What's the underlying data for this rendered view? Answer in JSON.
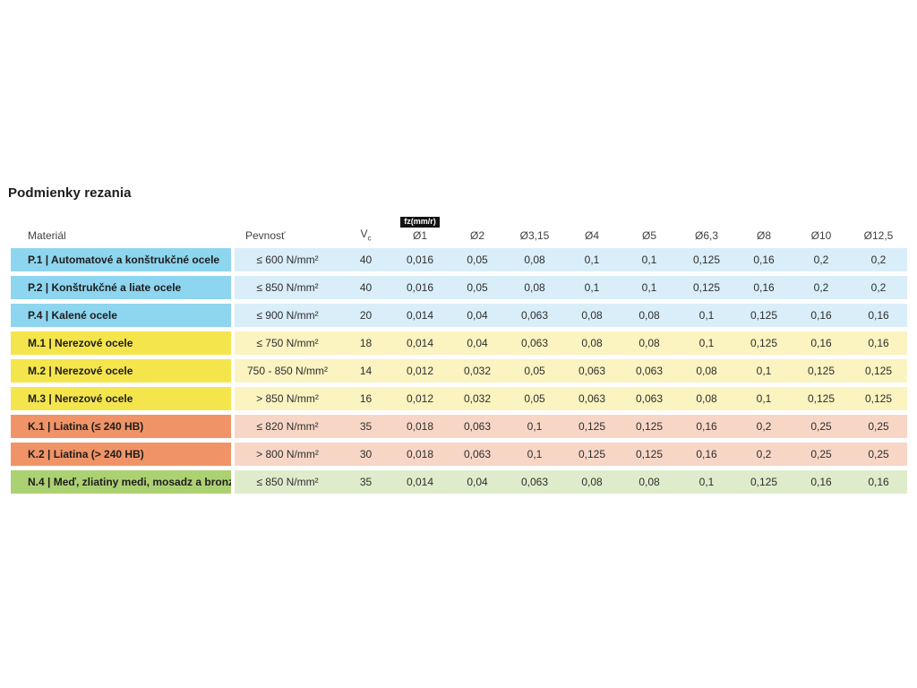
{
  "title": "Podmienky rezania",
  "table": {
    "headers": {
      "material": "Materiál",
      "pevnost": "Pevnosť",
      "vc_main": "V",
      "vc_sub": "c",
      "fz_badge": "fz(mm/r)",
      "diameters": [
        "Ø1",
        "Ø2",
        "Ø3,15",
        "Ø4",
        "Ø5",
        "Ø6,3",
        "Ø8",
        "Ø10",
        "Ø12,5"
      ]
    },
    "group_colors": {
      "P": {
        "dark": "#8ed5ef",
        "light": "#d9eef8"
      },
      "M": {
        "dark": "#f5e54d",
        "light": "#fbf3c0"
      },
      "K": {
        "dark": "#f09467",
        "light": "#f8d6c6"
      },
      "N": {
        "dark": "#acd173",
        "light": "#dfeccb"
      }
    },
    "rows": [
      {
        "group": "P",
        "material": "P.1 | Automatové a konštrukčné ocele",
        "pevnost": "≤ 600 N/mm²",
        "vc": "40",
        "values": [
          "0,016",
          "0,05",
          "0,08",
          "0,1",
          "0,1",
          "0,125",
          "0,16",
          "0,2",
          "0,2"
        ]
      },
      {
        "group": "P",
        "material": "P.2 | Konštrukčné a liate ocele",
        "pevnost": "≤ 850 N/mm²",
        "vc": "40",
        "values": [
          "0,016",
          "0,05",
          "0,08",
          "0,1",
          "0,1",
          "0,125",
          "0,16",
          "0,2",
          "0,2"
        ]
      },
      {
        "group": "P",
        "material": "P.4 | Kalené ocele",
        "pevnost": "≤ 900 N/mm²",
        "vc": "20",
        "values": [
          "0,014",
          "0,04",
          "0,063",
          "0,08",
          "0,08",
          "0,1",
          "0,125",
          "0,16",
          "0,16"
        ]
      },
      {
        "group": "M",
        "material": "M.1 | Nerezové ocele",
        "pevnost": "≤ 750 N/mm²",
        "vc": "18",
        "values": [
          "0,014",
          "0,04",
          "0,063",
          "0,08",
          "0,08",
          "0,1",
          "0,125",
          "0,16",
          "0,16"
        ]
      },
      {
        "group": "M",
        "material": "M.2 | Nerezové ocele",
        "pevnost": "750 - 850 N/mm²",
        "vc": "14",
        "values": [
          "0,012",
          "0,032",
          "0,05",
          "0,063",
          "0,063",
          "0,08",
          "0,1",
          "0,125",
          "0,125"
        ]
      },
      {
        "group": "M",
        "material": "M.3 | Nerezové ocele",
        "pevnost": "> 850 N/mm²",
        "vc": "16",
        "values": [
          "0,012",
          "0,032",
          "0,05",
          "0,063",
          "0,063",
          "0,08",
          "0,1",
          "0,125",
          "0,125"
        ]
      },
      {
        "group": "K",
        "material": "K.1 | Liatina (≤ 240 HB)",
        "pevnost": "≤ 820 N/mm²",
        "vc": "35",
        "values": [
          "0,018",
          "0,063",
          "0,1",
          "0,125",
          "0,125",
          "0,16",
          "0,2",
          "0,25",
          "0,25"
        ]
      },
      {
        "group": "K",
        "material": "K.2 | Liatina (> 240 HB)",
        "pevnost": "> 800 N/mm²",
        "vc": "30",
        "values": [
          "0,018",
          "0,063",
          "0,1",
          "0,125",
          "0,125",
          "0,16",
          "0,2",
          "0,25",
          "0,25"
        ]
      },
      {
        "group": "N",
        "material": "N.4 | Meď, zliatiny medi, mosadz a bronz",
        "pevnost": "≤ 850 N/mm²",
        "vc": "35",
        "values": [
          "0,014",
          "0,04",
          "0,063",
          "0,08",
          "0,08",
          "0,1",
          "0,125",
          "0,16",
          "0,16"
        ]
      }
    ]
  }
}
